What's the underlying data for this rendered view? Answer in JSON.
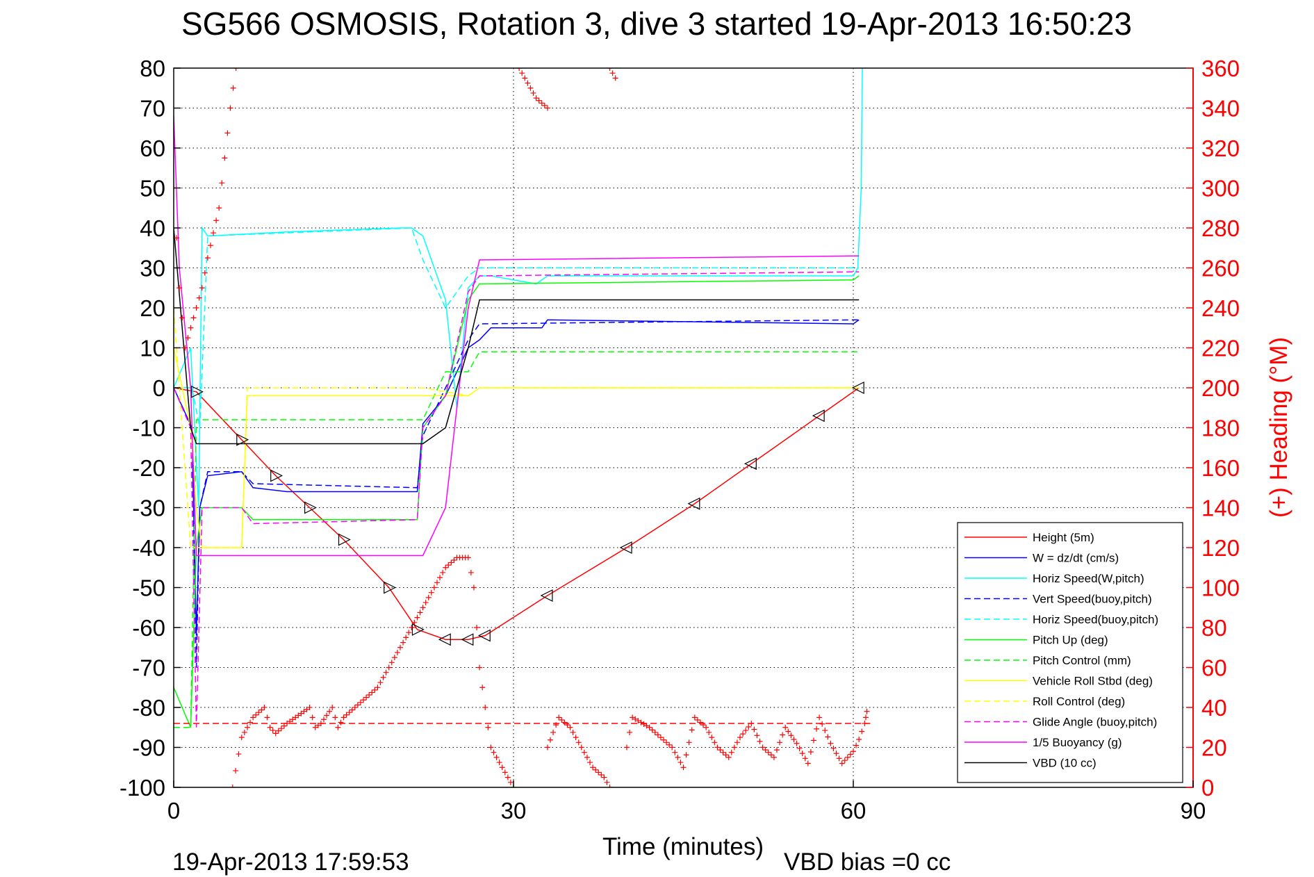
{
  "chart_data": {
    "type": "line",
    "title": "SG566 OSMOSIS, Rotation 3, dive 3 started 19-Apr-2013 16:50:23",
    "xlabel": "Time (minutes)",
    "ylabel_right": "(+) Heading (°M)",
    "xlim": [
      0,
      90
    ],
    "ylim_left": [
      -100,
      80
    ],
    "ylim_right": [
      0,
      360
    ],
    "x_ticks": [
      "0",
      "30",
      "60",
      "90"
    ],
    "y_ticks_left": [
      "80",
      "70",
      "60",
      "50",
      "40",
      "30",
      "20",
      "10",
      "0",
      "-10",
      "-20",
      "-30",
      "-40",
      "-50",
      "-60",
      "-70",
      "-80",
      "-90",
      "-100"
    ],
    "y_ticks_right": [
      "360",
      "340",
      "320",
      "300",
      "280",
      "260",
      "240",
      "220",
      "200",
      "180",
      "160",
      "140",
      "120",
      "100",
      "80",
      "60",
      "40",
      "20",
      "0"
    ],
    "grid": true,
    "grid_x": [
      30,
      60
    ],
    "legend_position": "bottom-right",
    "footer_date": "19-Apr-2013 17:59:53",
    "footer_vbd": "VBD bias =0 cc",
    "series": [
      {
        "name": "Height (5m)",
        "color": "#ff0000",
        "style": "solid",
        "points": [
          [
            0,
            0
          ],
          [
            2,
            -1
          ],
          [
            6,
            -13
          ],
          [
            9,
            -22
          ],
          [
            12,
            -30
          ],
          [
            15,
            -38
          ],
          [
            19,
            -50
          ],
          [
            21.5,
            -60.5
          ],
          [
            24,
            -63
          ],
          [
            26,
            -63
          ],
          [
            27.5,
            -62
          ],
          [
            33,
            -52
          ],
          [
            40,
            -40
          ],
          [
            46,
            -29
          ],
          [
            51,
            -19
          ],
          [
            57,
            -7
          ],
          [
            60.5,
            0
          ]
        ]
      },
      {
        "name": "W = dz/dt (cm/s)",
        "color": "#0000ff",
        "style": "solid",
        "points": [
          [
            0,
            0
          ],
          [
            1.6,
            -10
          ],
          [
            2.0,
            -62
          ],
          [
            2.3,
            -30
          ],
          [
            3,
            -22
          ],
          [
            6,
            -21
          ],
          [
            7,
            -25
          ],
          [
            10,
            -26
          ],
          [
            15,
            -26
          ],
          [
            21.5,
            -26
          ],
          [
            22,
            -9
          ],
          [
            24,
            -2
          ],
          [
            26,
            10
          ],
          [
            27,
            12
          ],
          [
            28,
            15
          ],
          [
            30,
            15
          ],
          [
            32.5,
            15
          ],
          [
            33,
            17
          ],
          [
            60,
            16
          ],
          [
            60.5,
            17
          ]
        ]
      },
      {
        "name": "Horiz Speed(W,pitch)",
        "color": "#00ffff",
        "style": "solid",
        "points": [
          [
            0,
            0
          ],
          [
            1.5,
            10
          ],
          [
            2.2,
            -30
          ],
          [
            2.5,
            40
          ],
          [
            3,
            38
          ],
          [
            10,
            39
          ],
          [
            20,
            40
          ],
          [
            21,
            40
          ],
          [
            22,
            38
          ],
          [
            24,
            22
          ],
          [
            25,
            -5
          ],
          [
            26,
            25
          ],
          [
            27,
            28
          ],
          [
            28,
            28
          ],
          [
            32,
            26
          ],
          [
            33,
            28
          ],
          [
            60,
            28
          ],
          [
            60.4,
            30
          ],
          [
            60.7,
            50
          ],
          [
            60.8,
            80
          ]
        ]
      },
      {
        "name": "Vert Speed(buoy,pitch)",
        "color": "#0000ff",
        "style": "dashed",
        "points": [
          [
            0,
            0
          ],
          [
            1.6,
            -10
          ],
          [
            2.0,
            -70
          ],
          [
            2.3,
            -30
          ],
          [
            3,
            -21
          ],
          [
            6,
            -21
          ],
          [
            7,
            -24
          ],
          [
            21.5,
            -25
          ],
          [
            22,
            -12
          ],
          [
            24,
            0
          ],
          [
            26,
            12
          ],
          [
            27,
            16
          ],
          [
            60,
            17
          ],
          [
            60.5,
            17
          ]
        ]
      },
      {
        "name": "Horiz Speed(buoy,pitch)",
        "color": "#00ffff",
        "style": "dashed",
        "points": [
          [
            0,
            0
          ],
          [
            1.6,
            0
          ],
          [
            2.3,
            -10
          ],
          [
            3,
            38
          ],
          [
            21,
            40
          ],
          [
            22,
            32
          ],
          [
            24,
            20
          ],
          [
            26,
            28
          ],
          [
            27,
            30
          ],
          [
            60,
            30
          ],
          [
            60.5,
            30
          ]
        ]
      },
      {
        "name": "Pitch Up (deg)",
        "color": "#00ff00",
        "style": "solid",
        "points": [
          [
            0,
            -75
          ],
          [
            1.5,
            -85
          ],
          [
            2.0,
            -40
          ],
          [
            2.5,
            -30
          ],
          [
            6,
            -30
          ],
          [
            7,
            -33
          ],
          [
            21.5,
            -33
          ],
          [
            22,
            -10
          ],
          [
            24,
            -2
          ],
          [
            26,
            22
          ],
          [
            27,
            26
          ],
          [
            60,
            27
          ],
          [
            60.5,
            28
          ]
        ]
      },
      {
        "name": "Pitch Control (mm)",
        "color": "#00ff00",
        "style": "dashed",
        "points": [
          [
            0,
            -85
          ],
          [
            1.5,
            -85
          ],
          [
            2.0,
            -8
          ],
          [
            21.5,
            -8
          ],
          [
            22,
            -8
          ],
          [
            24,
            4
          ],
          [
            26,
            4
          ],
          [
            27,
            9
          ],
          [
            60,
            9
          ],
          [
            60.5,
            9
          ]
        ]
      },
      {
        "name": "Vehicle Roll Stbd (deg)",
        "color": "#ffff00",
        "style": "solid",
        "points": [
          [
            0,
            10
          ],
          [
            1.5,
            -10
          ],
          [
            2.0,
            -30
          ],
          [
            2.5,
            -40
          ],
          [
            6,
            -40
          ],
          [
            6.5,
            -2
          ],
          [
            21.5,
            -2
          ],
          [
            22,
            -2
          ],
          [
            26,
            -2
          ],
          [
            27,
            0
          ],
          [
            60,
            0
          ],
          [
            60.5,
            0
          ]
        ]
      },
      {
        "name": "Roll Control (deg)",
        "color": "#ffff00",
        "style": "dashed",
        "points": [
          [
            0,
            20
          ],
          [
            1.5,
            -40
          ],
          [
            6,
            -40
          ],
          [
            6.5,
            0
          ],
          [
            21.5,
            0
          ],
          [
            22,
            0
          ],
          [
            26,
            -2
          ],
          [
            27,
            0
          ],
          [
            60,
            0
          ],
          [
            60.5,
            0
          ]
        ]
      },
      {
        "name": "Glide Angle (buoy,pitch)",
        "color": "#ff00ff",
        "style": "dashed",
        "points": [
          [
            0,
            0
          ],
          [
            1.5,
            -10
          ],
          [
            2.0,
            -85
          ],
          [
            2.5,
            -30
          ],
          [
            6,
            -30
          ],
          [
            7,
            -34
          ],
          [
            21.5,
            -33
          ],
          [
            22,
            -10
          ],
          [
            24,
            -2
          ],
          [
            26,
            24
          ],
          [
            27,
            28
          ],
          [
            60,
            29
          ],
          [
            60.5,
            29
          ]
        ]
      },
      {
        "name": "1/5 Buoyancy (g)",
        "color": "#ff00ff",
        "style": "solid",
        "points": [
          [
            0,
            68
          ],
          [
            0.5,
            30
          ],
          [
            1.5,
            0
          ],
          [
            2.0,
            -42
          ],
          [
            21.5,
            -42
          ],
          [
            22,
            -42
          ],
          [
            24,
            -30
          ],
          [
            26,
            20
          ],
          [
            27,
            32
          ],
          [
            60,
            33
          ],
          [
            60.5,
            33
          ]
        ]
      },
      {
        "name": "VBD (10 cc)",
        "color": "#000000",
        "style": "solid",
        "points": [
          [
            0,
            40
          ],
          [
            1.5,
            -10
          ],
          [
            2.0,
            -14
          ],
          [
            21.5,
            -14
          ],
          [
            22,
            -14
          ],
          [
            24,
            -10
          ],
          [
            26,
            10
          ],
          [
            27,
            22
          ],
          [
            60,
            22
          ],
          [
            60.5,
            22
          ]
        ]
      }
    ],
    "heading": {
      "name": "Heading",
      "color": "#ff0000",
      "marker": "+",
      "mean_deg": 32,
      "points": [
        [
          0,
          300
        ],
        [
          0.5,
          250
        ],
        [
          1.0,
          220
        ],
        [
          2.5,
          250
        ],
        [
          3,
          265
        ],
        [
          4,
          290
        ],
        [
          5,
          340
        ],
        [
          5.5,
          360
        ],
        [
          5.2,
          0
        ],
        [
          6,
          25
        ],
        [
          7,
          35
        ],
        [
          8,
          40
        ],
        [
          8.5,
          30
        ],
        [
          9,
          27
        ],
        [
          10,
          32
        ],
        [
          12,
          40
        ],
        [
          12.5,
          30
        ],
        [
          13,
          32
        ],
        [
          14,
          40
        ],
        [
          14.5,
          30
        ],
        [
          15,
          35
        ],
        [
          16,
          40
        ],
        [
          18,
          50
        ],
        [
          20,
          70
        ],
        [
          22,
          90
        ],
        [
          24,
          110
        ],
        [
          25,
          115
        ],
        [
          26,
          115
        ],
        [
          26.5,
          100
        ],
        [
          27,
          60
        ],
        [
          28,
          20
        ],
        [
          29,
          10
        ],
        [
          30,
          0
        ],
        [
          30.5,
          360
        ],
        [
          31,
          355
        ],
        [
          32,
          345
        ],
        [
          33,
          340
        ],
        [
          33,
          20
        ],
        [
          34,
          35
        ],
        [
          35,
          30
        ],
        [
          36,
          20
        ],
        [
          37,
          10
        ],
        [
          38,
          5
        ],
        [
          38.5,
          0
        ],
        [
          38.5,
          360
        ],
        [
          39,
          355
        ],
        [
          40,
          20
        ],
        [
          40.5,
          35
        ],
        [
          42,
          30
        ],
        [
          43,
          25
        ],
        [
          44,
          20
        ],
        [
          45,
          10
        ],
        [
          46,
          35
        ],
        [
          47,
          30
        ],
        [
          48,
          20
        ],
        [
          49,
          15
        ],
        [
          50,
          25
        ],
        [
          51,
          32
        ],
        [
          52,
          20
        ],
        [
          53,
          15
        ],
        [
          54,
          30
        ],
        [
          55,
          22
        ],
        [
          56,
          12
        ],
        [
          57,
          35
        ],
        [
          58,
          22
        ],
        [
          59,
          12
        ],
        [
          60,
          18
        ],
        [
          60.5,
          24
        ],
        [
          61,
          32
        ],
        [
          61.2,
          38
        ]
      ]
    }
  }
}
